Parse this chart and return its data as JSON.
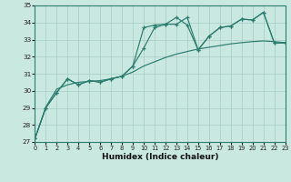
{
  "xlabel": "Humidex (Indice chaleur)",
  "x_values": [
    0,
    1,
    2,
    3,
    4,
    5,
    6,
    7,
    8,
    9,
    10,
    11,
    12,
    13,
    14,
    15,
    16,
    17,
    18,
    19,
    20,
    21,
    22,
    23
  ],
  "series1": [
    27.2,
    29.0,
    29.9,
    30.7,
    30.35,
    30.6,
    30.5,
    30.7,
    30.85,
    31.45,
    33.7,
    33.85,
    33.9,
    34.3,
    33.85,
    32.4,
    33.2,
    33.7,
    33.8,
    34.2,
    34.15,
    34.6,
    32.8,
    32.8
  ],
  "series2": [
    27.2,
    29.0,
    29.9,
    30.7,
    30.35,
    30.6,
    30.5,
    30.7,
    30.85,
    31.45,
    32.5,
    33.7,
    33.9,
    33.9,
    34.3,
    32.4,
    33.2,
    33.7,
    33.8,
    34.2,
    34.15,
    34.6,
    32.8,
    32.8
  ],
  "series_smooth": [
    27.2,
    29.05,
    30.1,
    30.35,
    30.5,
    30.55,
    30.6,
    30.7,
    30.85,
    31.1,
    31.45,
    31.7,
    31.95,
    32.15,
    32.3,
    32.45,
    32.55,
    32.65,
    32.75,
    32.82,
    32.88,
    32.92,
    32.88,
    32.82
  ],
  "line_color": "#2d7d6e",
  "bg_color": "#c8e8e0",
  "grid_color": "#a8ccc4",
  "ylim": [
    27,
    35
  ],
  "yticks": [
    27,
    28,
    29,
    30,
    31,
    32,
    33,
    34,
    35
  ],
  "xlim": [
    0,
    23
  ]
}
